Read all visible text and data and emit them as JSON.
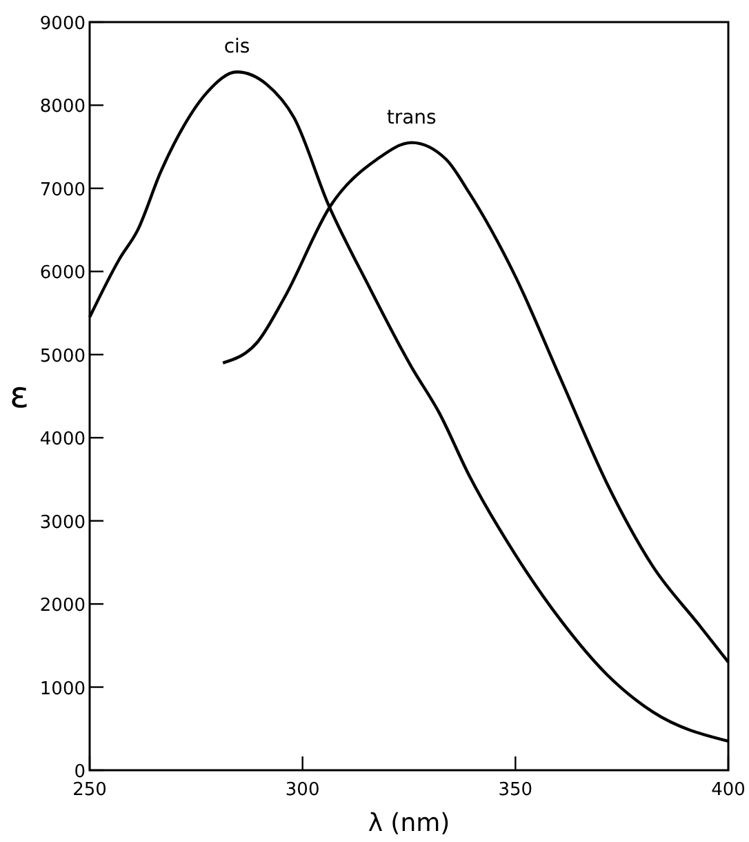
{
  "chart_data": {
    "type": "line",
    "xlabel": "λ (nm)",
    "ylabel": "ε",
    "xlim": [
      250,
      400
    ],
    "ylim": [
      0,
      9000
    ],
    "xticks": [
      250,
      300,
      350,
      400
    ],
    "yticks": [
      0,
      1000,
      2000,
      3000,
      4000,
      5000,
      6000,
      7000,
      8000,
      9000
    ],
    "grid": false,
    "marker": "none",
    "line_style": "solid",
    "series": [
      {
        "name": "cis",
        "color": "#000000",
        "x": [
          250,
          257,
          261.3,
          266.7,
          272.1,
          277.5,
          284.6,
          291.6,
          298,
          306.1,
          315.3,
          325.6,
          332.1,
          339.1,
          349.9,
          360.7,
          371.5,
          382.3,
          400
        ],
        "values": [
          5450,
          6150,
          6500,
          7200,
          7750,
          8150,
          8400,
          8250,
          7850,
          6800,
          5850,
          4850,
          4300,
          3550,
          2600,
          1800,
          1150,
          700,
          350
        ]
      },
      {
        "name": "trans",
        "color": "#000000",
        "x": [
          281.3,
          289.4,
          295.9,
          306.7,
          317.5,
          325.6,
          333.7,
          339.1,
          349.9,
          360.7,
          371.5,
          382.3,
          393.1,
          400
        ],
        "values": [
          4900,
          5150,
          5700,
          6800,
          7350,
          7550,
          7350,
          6950,
          5950,
          4700,
          3450,
          2450,
          1750,
          1300
        ]
      }
    ]
  }
}
